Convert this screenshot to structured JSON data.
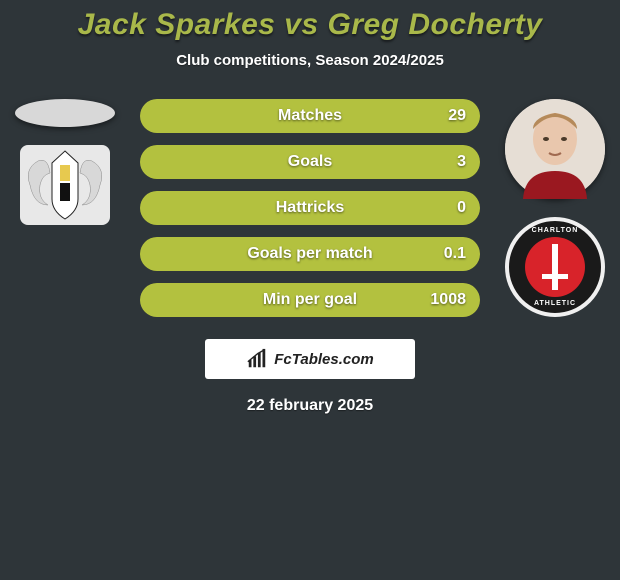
{
  "background_color": "#2e3539",
  "title": {
    "text": "Jack Sparkes vs Greg Docherty",
    "color": "#a9b84a",
    "fontsize": 30
  },
  "subtitle": {
    "text": "Club competitions, Season 2024/2025",
    "color": "#ffffff",
    "fontsize": 15
  },
  "date": {
    "text": "22 february 2025",
    "color": "#ffffff",
    "fontsize": 16
  },
  "watermark": {
    "text": "FcTables.com",
    "fontsize": 15
  },
  "bars": {
    "track_color": "#7f8b2e",
    "fill_color": "#b3c13f",
    "height": 34,
    "radius": 17,
    "label_fontsize": 16,
    "value_fontsize": 16,
    "items": [
      {
        "label": "Matches",
        "value": "29",
        "fill_pct": 100
      },
      {
        "label": "Goals",
        "value": "3",
        "fill_pct": 100
      },
      {
        "label": "Hattricks",
        "value": "0",
        "fill_pct": 100
      },
      {
        "label": "Goals per match",
        "value": "0.1",
        "fill_pct": 100
      },
      {
        "label": "Min per goal",
        "value": "1008",
        "fill_pct": 100
      }
    ]
  },
  "right_club": {
    "top_text": "CHARLTON",
    "bottom_text": "ATHLETIC"
  }
}
